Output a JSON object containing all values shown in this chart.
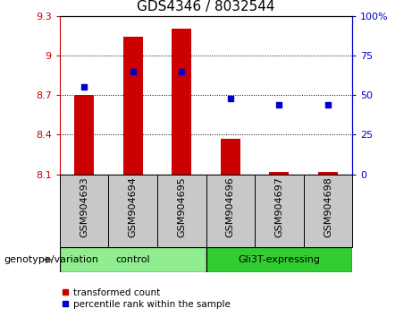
{
  "title": "GDS4346 / 8032544",
  "samples": [
    "GSM904693",
    "GSM904694",
    "GSM904695",
    "GSM904696",
    "GSM904697",
    "GSM904698"
  ],
  "red_values": [
    8.7,
    9.14,
    9.2,
    8.37,
    8.12,
    8.12
  ],
  "blue_values": [
    55,
    65,
    65,
    48,
    44,
    44
  ],
  "baseline": 8.1,
  "ylim_left": [
    8.1,
    9.3
  ],
  "ylim_right": [
    0,
    100
  ],
  "yticks_left": [
    8.1,
    8.4,
    8.7,
    9.0,
    9.3
  ],
  "yticks_right": [
    0,
    25,
    50,
    75,
    100
  ],
  "ytick_labels_left": [
    "8.1",
    "8.4",
    "8.7",
    "9",
    "9.3"
  ],
  "ytick_labels_right": [
    "0",
    "25",
    "50",
    "75",
    "100%"
  ],
  "bar_color": "#CC0000",
  "dot_color": "#0000CC",
  "bar_width": 0.4,
  "legend_red_label": "transformed count",
  "legend_blue_label": "percentile rank within the sample",
  "genotype_label": "genotype/variation",
  "control_color": "#90EE90",
  "gli3t_color": "#32CD32",
  "title_fontsize": 11,
  "tick_fontsize": 8,
  "label_fontsize": 8,
  "xtick_bg": "#C8C8C8"
}
